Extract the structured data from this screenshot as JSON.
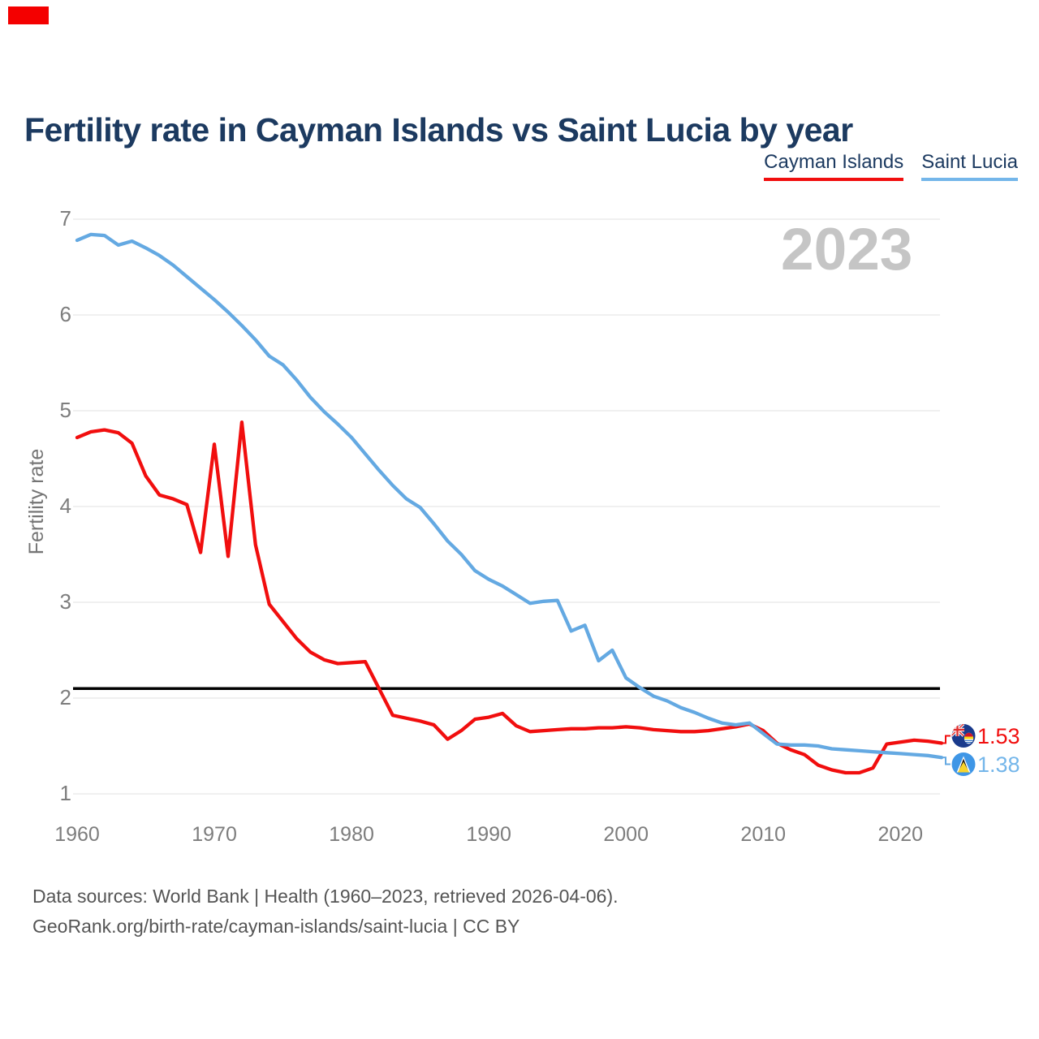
{
  "page": {
    "marker_color": "#f40000",
    "background": "#ffffff"
  },
  "header": {
    "title": "Fertility rate in Cayman Islands vs Saint Lucia by year"
  },
  "legend": [
    {
      "label": "Cayman Islands",
      "color": "#f10e0e"
    },
    {
      "label": "Saint Lucia",
      "color": "#74b6ea"
    }
  ],
  "watermark": "2023",
  "chart_data": {
    "type": "line",
    "title": "Fertility rate in Cayman Islands vs Saint Lucia by year",
    "xlabel": "",
    "ylabel": "Fertility rate",
    "ylim": [
      1,
      7
    ],
    "yticks": [
      1,
      2,
      3,
      4,
      5,
      6,
      7
    ],
    "xticks": [
      1960,
      1970,
      1980,
      1990,
      2000,
      2010,
      2020
    ],
    "grid": true,
    "legend_position": "top-right",
    "reference_line": {
      "value": 2.1,
      "color": "#000000"
    },
    "years": [
      1960,
      1961,
      1962,
      1963,
      1964,
      1965,
      1966,
      1967,
      1968,
      1969,
      1970,
      1971,
      1972,
      1973,
      1974,
      1975,
      1976,
      1977,
      1978,
      1979,
      1980,
      1981,
      1982,
      1983,
      1984,
      1985,
      1986,
      1987,
      1988,
      1989,
      1990,
      1991,
      1992,
      1993,
      1994,
      1995,
      1996,
      1997,
      1998,
      1999,
      2000,
      2001,
      2002,
      2003,
      2004,
      2005,
      2006,
      2007,
      2008,
      2009,
      2010,
      2011,
      2012,
      2013,
      2014,
      2015,
      2016,
      2017,
      2018,
      2019,
      2020,
      2021,
      2022,
      2023
    ],
    "series": [
      {
        "name": "Cayman Islands",
        "color": "#f10e0e",
        "values": [
          4.72,
          4.78,
          4.8,
          4.77,
          4.66,
          4.32,
          4.12,
          4.08,
          4.02,
          3.52,
          4.65,
          3.48,
          4.88,
          3.6,
          2.98,
          2.8,
          2.62,
          2.48,
          2.4,
          2.36,
          2.37,
          2.38,
          2.1,
          1.82,
          1.79,
          1.76,
          1.72,
          1.57,
          1.66,
          1.78,
          1.8,
          1.84,
          1.71,
          1.65,
          1.66,
          1.67,
          1.68,
          1.68,
          1.69,
          1.69,
          1.7,
          1.69,
          1.67,
          1.66,
          1.65,
          1.65,
          1.66,
          1.68,
          1.7,
          1.73,
          1.66,
          1.53,
          1.46,
          1.41,
          1.3,
          1.25,
          1.22,
          1.22,
          1.27,
          1.52,
          1.54,
          1.56,
          1.55,
          1.53
        ]
      },
      {
        "name": "Saint Lucia",
        "color": "#64a9e2",
        "values": [
          6.78,
          6.84,
          6.83,
          6.73,
          6.77,
          6.7,
          6.62,
          6.52,
          6.4,
          6.28,
          6.16,
          6.03,
          5.89,
          5.74,
          5.57,
          5.48,
          5.32,
          5.14,
          4.99,
          4.86,
          4.72,
          4.55,
          4.38,
          4.22,
          4.08,
          3.99,
          3.82,
          3.64,
          3.5,
          3.33,
          3.24,
          3.17,
          3.08,
          2.99,
          3.01,
          3.02,
          2.7,
          2.76,
          2.39,
          2.5,
          2.21,
          2.11,
          2.02,
          1.97,
          1.9,
          1.85,
          1.79,
          1.74,
          1.72,
          1.74,
          1.63,
          1.52,
          1.51,
          1.51,
          1.5,
          1.47,
          1.46,
          1.45,
          1.44,
          1.43,
          1.42,
          1.41,
          1.4,
          1.38
        ]
      }
    ],
    "end_labels": [
      {
        "series": "Cayman Islands",
        "value": "1.53",
        "color": "#f10e0e",
        "flag": "cayman-islands"
      },
      {
        "series": "Saint Lucia",
        "value": "1.38",
        "color": "#74b6ea",
        "flag": "saint-lucia"
      }
    ]
  },
  "footer": {
    "line1": "Data sources: World Bank | Health (1960–2023, retrieved 2026-04-06).",
    "line2": "GeoRank.org/birth-rate/cayman-islands/saint-lucia | CC BY"
  }
}
